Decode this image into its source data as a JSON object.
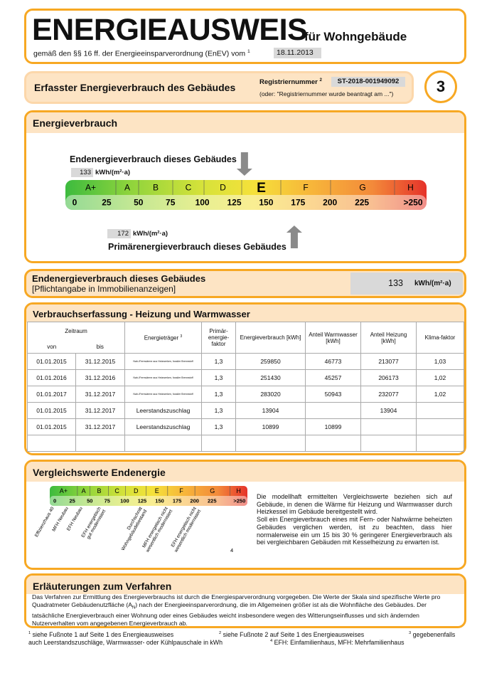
{
  "header": {
    "title": "ENERGIEAUSWEIS",
    "subtitle": "für Wohngebäude",
    "basis": "gemäß den §§ 16 ff. der Energieeinsparverordnung (EnEV) vom",
    "basis_note": "1",
    "date": "18.11.2013"
  },
  "registration": {
    "title": "Erfasster Energieverbrauch des Gebäudes",
    "label": "Registriernummer",
    "label_note": "2",
    "number": "ST-2018-001949092",
    "hint": "(oder: \"Registriernummer wurde beantragt am ...\")",
    "page": "3"
  },
  "consumption": {
    "title": "Energieverbrauch",
    "final_label": "Endenergieverbrauch dieses Gebäudes",
    "final_value": 133,
    "final_unit": "kWh/(m²·a)",
    "primary_value": 172,
    "primary_unit": "kWh/(m²·a)",
    "primary_label": "Primärenergieverbrauch dieses Gebäudes",
    "classes": [
      "A+",
      "A",
      "B",
      "C",
      "D",
      "E",
      "F",
      "G",
      "H"
    ],
    "ticks": [
      0,
      25,
      50,
      75,
      100,
      125,
      150,
      175,
      200,
      225,
      {
        "value": 250,
        "label": ">250"
      }
    ]
  },
  "listing": {
    "title": "Endenergieverbrauch dieses Gebäudes",
    "note": "[Pflichtangabe in Immobilienanzeigen]"
  },
  "table": {
    "title": "Verbrauchserfassung - Heizung und Warmwasser",
    "headers": {
      "period": "Zeitraum",
      "from": "von",
      "to": "bis",
      "carrier": "Energieträger",
      "carrier_note": "3",
      "factor": "Primär-energie-faktor",
      "consumption": "Energieverbrauch [kWh]",
      "hot_water": "Anteil Warmwasser [kWh]",
      "heating": "Anteil Heizung [kWh]",
      "climate": "Klima-faktor"
    },
    "rows": [
      [
        "01.01.2015",
        "31.12.2015",
        "Nah-/Fernwärme aus Heizwerken, fossiler Brennstoff",
        "1,3",
        "259850",
        "46773",
        "213077",
        "1,03"
      ],
      [
        "01.01.2016",
        "31.12.2016",
        "Nah-/Fernwärme aus Heizwerken, fossiler Brennstoff",
        "1,3",
        "251430",
        "45257",
        "206173",
        "1,02"
      ],
      [
        "01.01.2017",
        "31.12.2017",
        "Nah-/Fernwärme aus Heizwerken, fossiler Brennstoff",
        "1,3",
        "283020",
        "50943",
        "232077",
        "1,02"
      ],
      [
        "01.01.2015",
        "31.12.2017",
        "Leerstandszuschlag",
        "1,3",
        "13904",
        null,
        "13904",
        null
      ],
      [
        "01.01.2015",
        "31.12.2017",
        "Leerstandszuschlag",
        "1,3",
        "10899",
        "10899",
        null,
        null
      ],
      [
        null,
        null,
        null,
        null,
        null,
        null,
        null,
        null
      ]
    ]
  },
  "comparison": {
    "title": "Vergleichswerte Endenergie",
    "references": [
      [
        "Effizienzhaus 40"
      ],
      [
        "MFH Neubau"
      ],
      [
        "EFH Neubau"
      ],
      [
        "EFH energetisch",
        "gut modernisiert"
      ],
      [
        "Durchschnitt",
        "Wohngebäudebestand"
      ],
      [
        "MFH energetisch nicht",
        "wesentlich modernisiert"
      ],
      [
        "EFH energetisch nicht",
        "wesentlich modernisiert"
      ]
    ],
    "references_note": "4",
    "text": [
      "Die modellhaft ermittelten Vergleichswerte beziehen sich auf Gebäude, in denen die Wärme für Heizung und Warmwasser durch Heizkessel im Gebäude bereitgestellt wird.",
      "Soll ein Energieverbrauch eines mit Fern- oder Nahwärme beheizten Gebäudes verglichen werden, ist zu beachten, dass hier normalerweise ein um 15 bis 30 % geringerer Energieverbrauch als bei vergleichbaren Gebäuden mit Kesselheizung zu erwarten ist."
    ]
  },
  "explanation": {
    "title": "Erläuterungen zum Verfahren",
    "text_before": "Das Verfahren zur Ermittlung des Energieverbrauchs ist durch die Energiesparverordnung vorgegeben. Die Werte der Skala sind spezifische Werte pro Quadratmeter Gebäudenutzfläche (A",
    "subscript": "N",
    "text_after": ") nach der Energieeinsparverordnung, die im Allgemeinen größer ist als die Wohnfläche des Gebäudes. Der tatsächliche Energieverbrauch einer Wohnung oder eines Gebäudes weicht insbesondere wegen des Witterungseinflusses und sich ändernden Nutzerverhalten vom angegebenen Energieverbrauch ab."
  },
  "footnotes": [
    {
      "mark": "1",
      "text": "siehe Fußnote 1 auf Seite 1 des Energieausweises"
    },
    {
      "mark": "2",
      "text": "siehe Fußnote 2 auf Seite 1 des Energieausweises"
    },
    {
      "mark": "3",
      "text": [
        "gegebenenfalls",
        "auch Leerstandszuschläge, Warmwasser- oder Kühlpauschale in kWh"
      ]
    },
    {
      "mark": "4",
      "text": "EFH: Einfamilienhaus, MFH: Mehrfamilienhaus"
    }
  ]
}
